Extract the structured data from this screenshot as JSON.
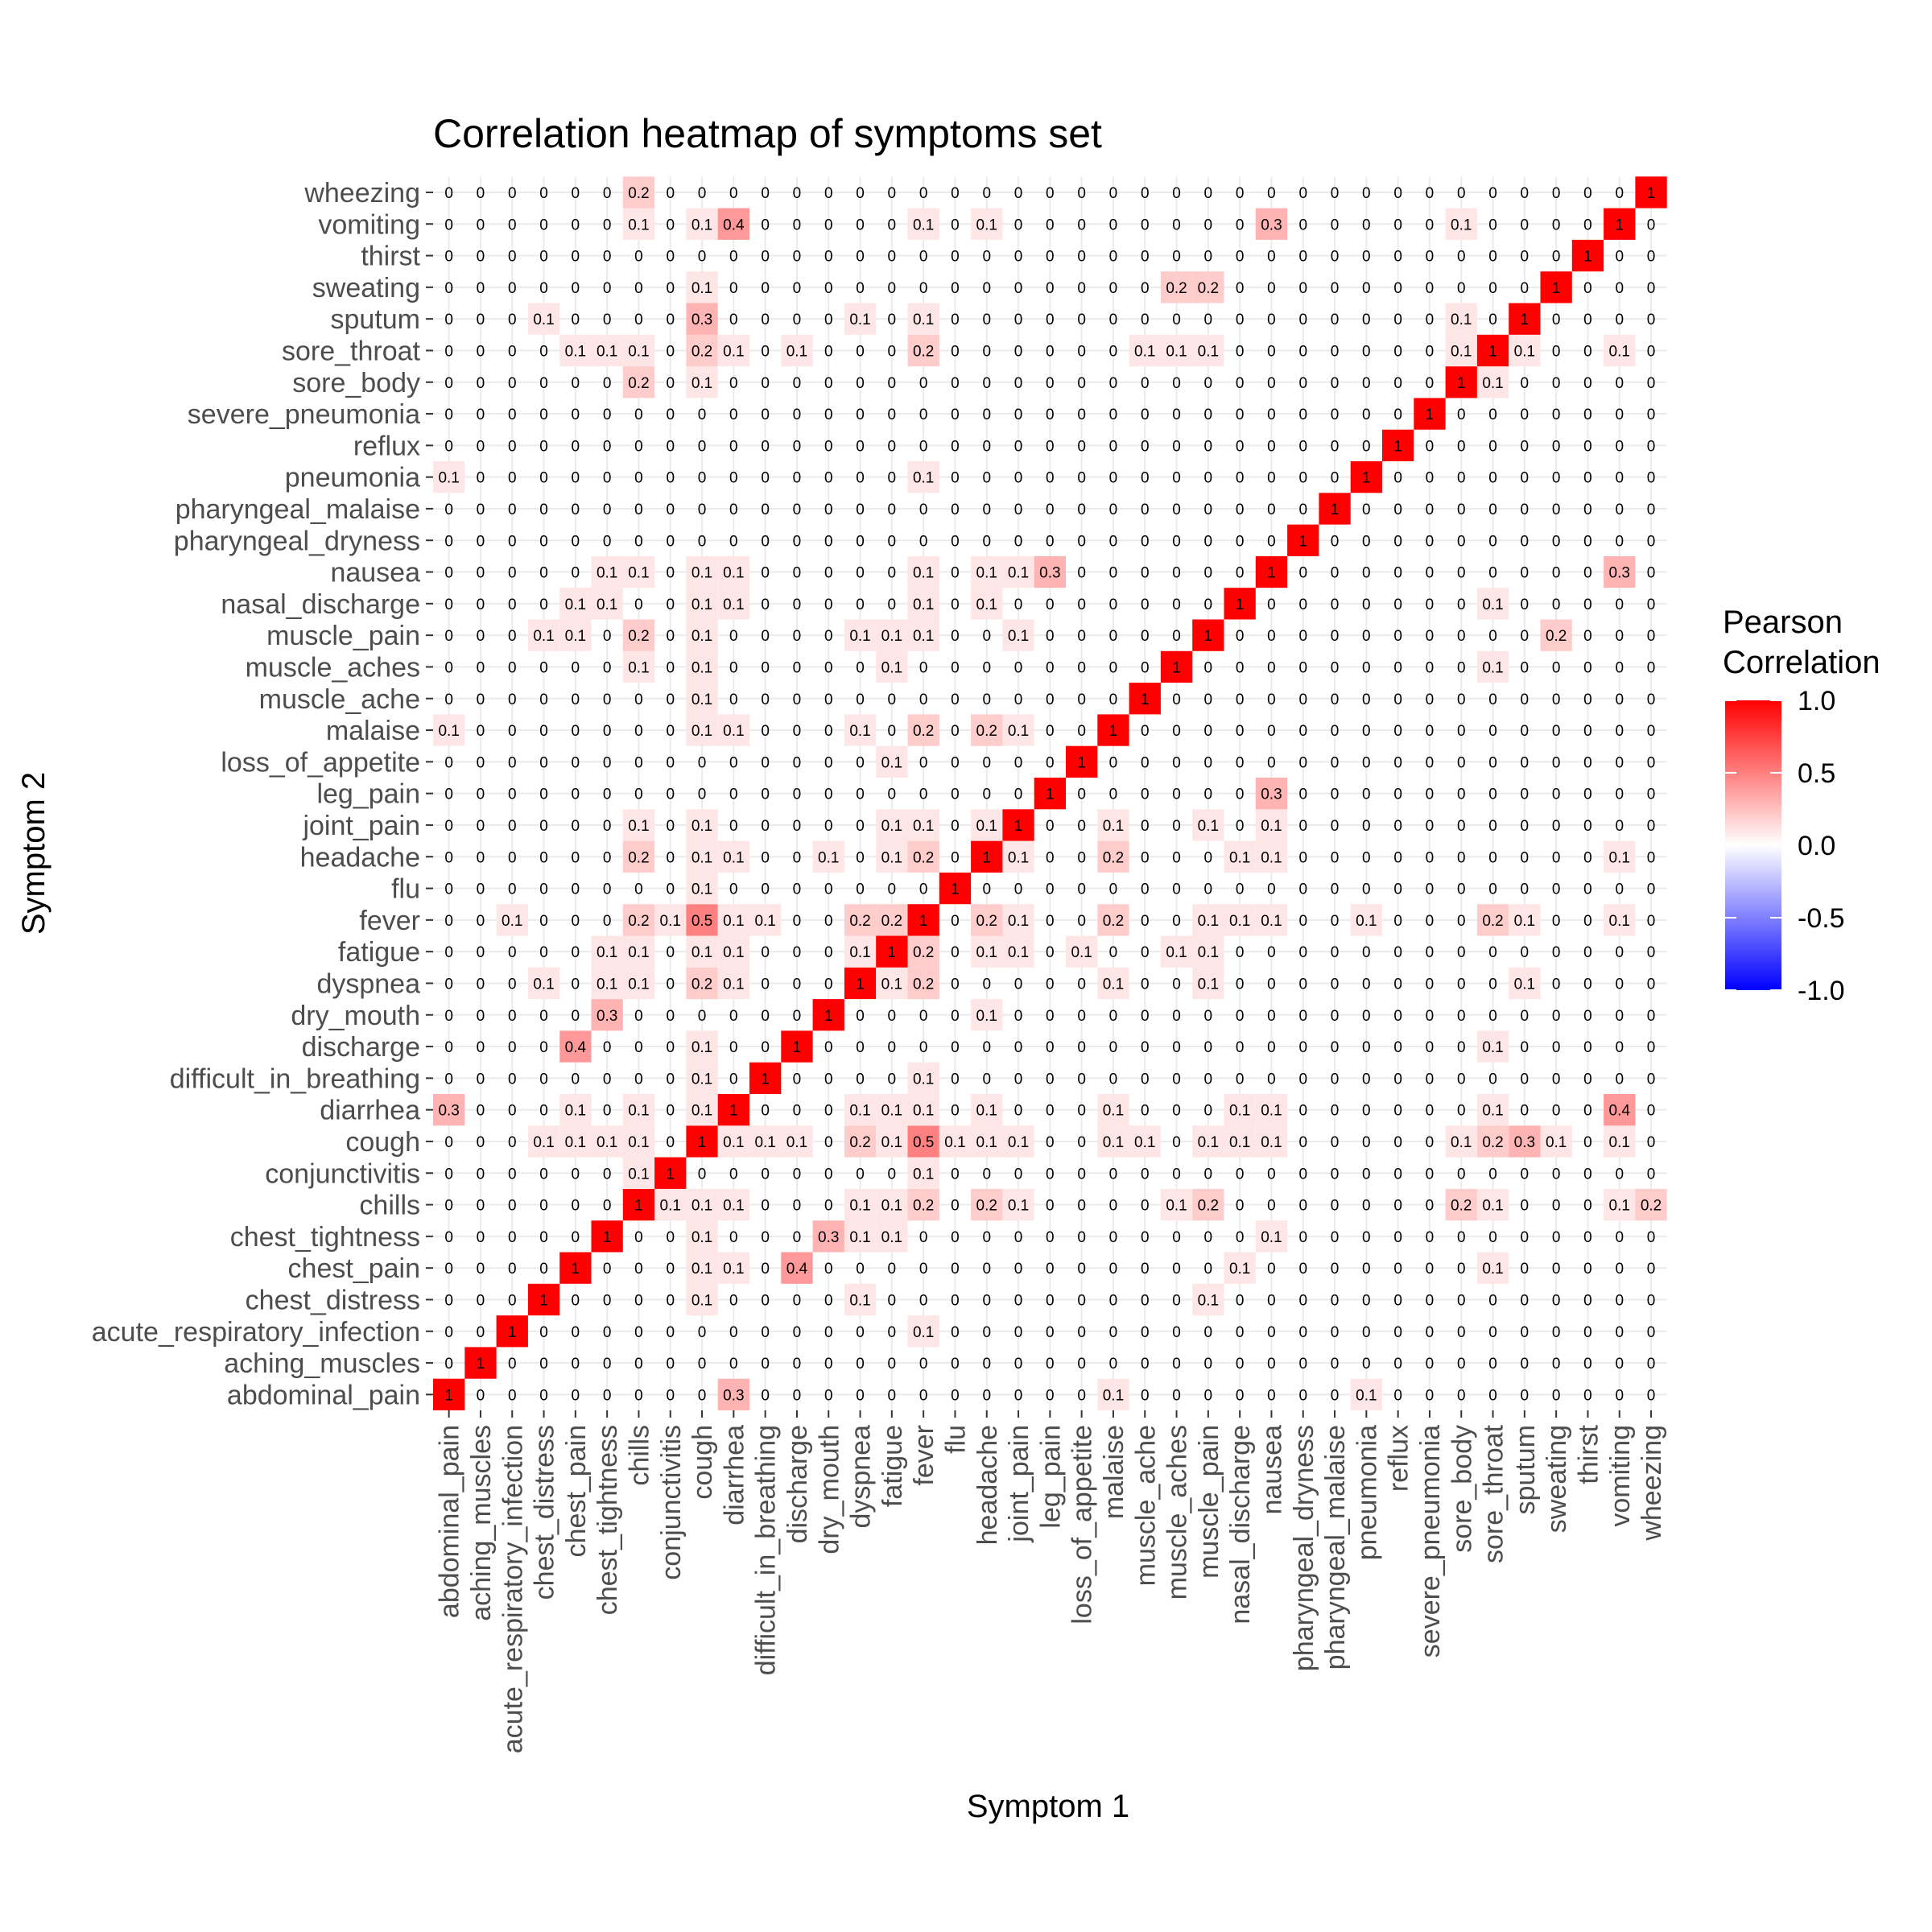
{
  "chart_data": {
    "type": "heatmap",
    "title": "Correlation heatmap of symptoms set",
    "xlabel": "Symptom 1",
    "ylabel": "Symptom 2",
    "legend": {
      "title_lines": [
        "Pearson",
        "Correlation"
      ],
      "ticks": [
        1.0,
        0.5,
        0.0,
        -0.5,
        -1.0
      ],
      "tick_labels": [
        "1.0",
        "0.5",
        "0.0",
        "-0.5",
        "-1.0"
      ],
      "range": [
        -1,
        1
      ],
      "colors": {
        "low": "#0000ff",
        "mid": "#ffffff",
        "high": "#ff0000"
      },
      "position": "right"
    },
    "symptoms": [
      "abdominal_pain",
      "aching_muscles",
      "acute_respiratory_infection",
      "chest_distress",
      "chest_pain",
      "chest_tightness",
      "chills",
      "conjunctivitis",
      "cough",
      "diarrhea",
      "difficult_in_breathing",
      "discharge",
      "dry_mouth",
      "dyspnea",
      "fatigue",
      "fever",
      "flu",
      "headache",
      "joint_pain",
      "leg_pain",
      "loss_of_appetite",
      "malaise",
      "muscle_ache",
      "muscle_aches",
      "muscle_pain",
      "nasal_discharge",
      "nausea",
      "pharyngeal_dryness",
      "pharyngeal_malaise",
      "pneumonia",
      "reflux",
      "severe_pneumonia",
      "sore_body",
      "sore_throat",
      "sputum",
      "sweating",
      "thirst",
      "vomiting",
      "wheezing"
    ],
    "cells": [
      [
        0,
        9,
        0.3
      ],
      [
        0,
        21,
        0.1
      ],
      [
        0,
        29,
        0.1
      ],
      [
        2,
        15,
        0.1
      ],
      [
        3,
        8,
        0.1
      ],
      [
        3,
        13,
        0.1
      ],
      [
        3,
        24,
        0.1
      ],
      [
        4,
        8,
        0.1
      ],
      [
        4,
        9,
        0.1
      ],
      [
        4,
        11,
        0.4
      ],
      [
        4,
        25,
        0.1
      ],
      [
        4,
        33,
        0.1
      ],
      [
        5,
        8,
        0.1
      ],
      [
        5,
        12,
        0.3
      ],
      [
        5,
        13,
        0.1
      ],
      [
        5,
        14,
        0.1
      ],
      [
        5,
        26,
        0.1
      ],
      [
        6,
        7,
        0.1
      ],
      [
        6,
        8,
        0.1
      ],
      [
        6,
        9,
        0.1
      ],
      [
        6,
        13,
        0.1
      ],
      [
        6,
        14,
        0.1
      ],
      [
        6,
        15,
        0.2
      ],
      [
        6,
        17,
        0.2
      ],
      [
        6,
        18,
        0.1
      ],
      [
        6,
        23,
        0.1
      ],
      [
        6,
        24,
        0.2
      ],
      [
        6,
        32,
        0.2
      ],
      [
        6,
        33,
        0.1
      ],
      [
        6,
        37,
        0.1
      ],
      [
        6,
        38,
        0.2
      ],
      [
        7,
        15,
        0.1
      ],
      [
        8,
        9,
        0.1
      ],
      [
        8,
        10,
        0.1
      ],
      [
        8,
        11,
        0.1
      ],
      [
        8,
        13,
        0.2
      ],
      [
        8,
        14,
        0.1
      ],
      [
        8,
        15,
        0.5
      ],
      [
        8,
        16,
        0.1
      ],
      [
        8,
        17,
        0.1
      ],
      [
        8,
        18,
        0.1
      ],
      [
        8,
        21,
        0.1
      ],
      [
        8,
        22,
        0.1
      ],
      [
        8,
        24,
        0.1
      ],
      [
        8,
        25,
        0.1
      ],
      [
        8,
        26,
        0.1
      ],
      [
        8,
        32,
        0.1
      ],
      [
        8,
        33,
        0.2
      ],
      [
        8,
        34,
        0.3
      ],
      [
        8,
        35,
        0.1
      ],
      [
        8,
        37,
        0.1
      ],
      [
        9,
        13,
        0.1
      ],
      [
        9,
        14,
        0.1
      ],
      [
        9,
        15,
        0.1
      ],
      [
        9,
        17,
        0.1
      ],
      [
        9,
        21,
        0.1
      ],
      [
        9,
        25,
        0.1
      ],
      [
        9,
        26,
        0.1
      ],
      [
        9,
        33,
        0.1
      ],
      [
        9,
        37,
        0.4
      ],
      [
        10,
        15,
        0.1
      ],
      [
        11,
        33,
        0.1
      ],
      [
        12,
        17,
        0.1
      ],
      [
        13,
        14,
        0.1
      ],
      [
        13,
        15,
        0.2
      ],
      [
        13,
        21,
        0.1
      ],
      [
        13,
        24,
        0.1
      ],
      [
        13,
        34,
        0.1
      ],
      [
        14,
        15,
        0.2
      ],
      [
        14,
        17,
        0.1
      ],
      [
        14,
        18,
        0.1
      ],
      [
        14,
        20,
        0.1
      ],
      [
        14,
        23,
        0.1
      ],
      [
        14,
        24,
        0.1
      ],
      [
        15,
        17,
        0.2
      ],
      [
        15,
        18,
        0.1
      ],
      [
        15,
        21,
        0.2
      ],
      [
        15,
        24,
        0.1
      ],
      [
        15,
        25,
        0.1
      ],
      [
        15,
        26,
        0.1
      ],
      [
        15,
        29,
        0.1
      ],
      [
        15,
        33,
        0.2
      ],
      [
        15,
        34,
        0.1
      ],
      [
        15,
        37,
        0.1
      ],
      [
        17,
        18,
        0.1
      ],
      [
        17,
        21,
        0.2
      ],
      [
        17,
        25,
        0.1
      ],
      [
        17,
        26,
        0.1
      ],
      [
        17,
        37,
        0.1
      ],
      [
        18,
        21,
        0.1
      ],
      [
        18,
        24,
        0.1
      ],
      [
        18,
        26,
        0.1
      ],
      [
        19,
        26,
        0.3
      ],
      [
        21,
        17,
        0.2
      ],
      [
        23,
        33,
        0.1
      ],
      [
        24,
        35,
        0.2
      ],
      [
        26,
        37,
        0.3
      ],
      [
        32,
        33,
        0.1
      ]
    ],
    "extra_cells": [
      [
        21,
        0,
        0.1
      ],
      [
        21,
        9,
        0.1
      ],
      [
        21,
        8,
        0.1
      ],
      [
        21,
        13,
        0.1
      ],
      [
        21,
        15,
        0.2
      ],
      [
        21,
        18,
        0.1
      ],
      [
        23,
        8,
        0.1
      ],
      [
        23,
        14,
        0.1
      ],
      [
        23,
        33,
        0.1
      ],
      [
        24,
        4,
        0.1
      ],
      [
        24,
        6,
        0.2
      ],
      [
        24,
        8,
        0.1
      ],
      [
        24,
        13,
        0.1
      ],
      [
        24,
        14,
        0.1
      ],
      [
        24,
        15,
        0.1
      ],
      [
        24,
        18,
        0.1
      ],
      [
        24,
        35,
        0.2
      ],
      [
        25,
        5,
        0.1
      ],
      [
        25,
        8,
        0.1
      ],
      [
        25,
        9,
        0.1
      ],
      [
        25,
        15,
        0.1
      ],
      [
        25,
        17,
        0.1
      ],
      [
        25,
        33,
        0.1
      ],
      [
        26,
        6,
        0.1
      ],
      [
        26,
        8,
        0.1
      ],
      [
        26,
        9,
        0.1
      ],
      [
        26,
        15,
        0.1
      ],
      [
        26,
        17,
        0.1
      ],
      [
        26,
        18,
        0.1
      ],
      [
        26,
        19,
        0.3
      ],
      [
        26,
        37,
        0.3
      ],
      [
        29,
        0,
        0.1
      ],
      [
        29,
        15,
        0.1
      ],
      [
        32,
        6,
        0.2
      ],
      [
        32,
        8,
        0.1
      ],
      [
        33,
        5,
        0.1
      ],
      [
        33,
        6,
        0.1
      ],
      [
        33,
        8,
        0.2
      ],
      [
        33,
        9,
        0.1
      ],
      [
        33,
        11,
        0.1
      ],
      [
        33,
        15,
        0.2
      ],
      [
        33,
        22,
        0.1
      ],
      [
        33,
        24,
        0.1
      ],
      [
        33,
        34,
        0.1
      ],
      [
        33,
        37,
        0.1
      ],
      [
        34,
        3,
        0.1
      ],
      [
        34,
        8,
        0.3
      ],
      [
        34,
        13,
        0.1
      ],
      [
        34,
        15,
        0.1
      ],
      [
        34,
        32,
        0.1
      ],
      [
        35,
        8,
        0.1
      ],
      [
        35,
        23,
        0.2
      ],
      [
        37,
        6,
        0.1
      ],
      [
        37,
        8,
        0.1
      ],
      [
        37,
        9,
        0.4
      ],
      [
        37,
        15,
        0.1
      ],
      [
        37,
        17,
        0.1
      ],
      [
        37,
        26,
        0.3
      ],
      [
        37,
        32,
        0.1
      ],
      [
        38,
        6,
        0.2
      ]
    ]
  }
}
